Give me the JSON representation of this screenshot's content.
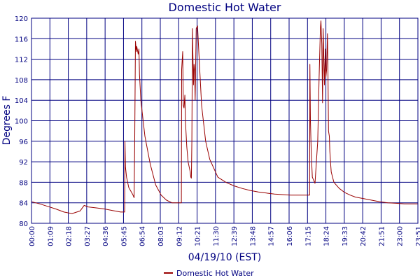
{
  "chart_data": {
    "type": "line",
    "title": "Domestic Hot Water",
    "xlabel": "04/19/10 (EST)",
    "ylabel": "Degrees F",
    "ylim": [
      80,
      120
    ],
    "yticks": [
      "80",
      "84",
      "88",
      "92",
      "96",
      "100",
      "104",
      "108",
      "112",
      "116",
      "120"
    ],
    "xticks": [
      "00:00",
      "01:09",
      "02:18",
      "03:27",
      "04:36",
      "05:45",
      "06:54",
      "08:03",
      "09:12",
      "10:21",
      "11:30",
      "12:39",
      "13:48",
      "14:57",
      "16:06",
      "17:15",
      "18:24",
      "19:33",
      "20:42",
      "21:51",
      "23:00",
      "23:51"
    ],
    "grid": true,
    "legend": "bottom-center",
    "colors": {
      "series": "#990000",
      "axis": "#000080",
      "grid": "#000080",
      "text": "#000080"
    },
    "series": [
      {
        "name": "Domestic Hot Water",
        "x_minutes": [
          0,
          30,
          60,
          90,
          120,
          150,
          180,
          195,
          210,
          240,
          270,
          300,
          330,
          345,
          346,
          348,
          352,
          360,
          375,
          380,
          382,
          385,
          388,
          390,
          395,
          398,
          400,
          405,
          420,
          440,
          460,
          480,
          500,
          520,
          540,
          555,
          556,
          560,
          562,
          565,
          568,
          570,
          575,
          580,
          588,
          590,
          592,
          594,
          596,
          598,
          600,
          602,
          604,
          606,
          610,
          615,
          620,
          630,
          645,
          660,
          690,
          720,
          750,
          780,
          810,
          840,
          870,
          900,
          930,
          960,
          990,
          1030,
          1031,
          1033,
          1036,
          1040,
          1050,
          1060,
          1065,
          1070,
          1072,
          1075,
          1078,
          1080,
          1085,
          1088,
          1090,
          1093,
          1096,
          1098,
          1100,
          1103,
          1105,
          1108,
          1110,
          1120,
          1140,
          1160,
          1180,
          1200,
          1230,
          1260,
          1290,
          1320,
          1350,
          1380,
          1410,
          1431
        ],
        "values": [
          84.2,
          83.8,
          83.3,
          82.8,
          82.2,
          81.9,
          82.4,
          83.5,
          83.2,
          83.0,
          82.8,
          82.5,
          82.2,
          82.2,
          96.0,
          91.0,
          89.0,
          87.0,
          85.6,
          85.0,
          95.0,
          115.5,
          113.5,
          114.5,
          113.0,
          114.0,
          109.0,
          104.0,
          97.0,
          91.5,
          87.5,
          85.5,
          84.5,
          84.0,
          84.0,
          84.0,
          110.0,
          113.5,
          103.0,
          102.5,
          105.0,
          100.0,
          95.0,
          92.0,
          90.0,
          89.0,
          88.8,
          96.0,
          118.0,
          112.0,
          107.0,
          111.0,
          110.0,
          104.0,
          118.0,
          118.5,
          113.0,
          103.0,
          96.0,
          92.5,
          89.0,
          88.0,
          87.3,
          86.8,
          86.4,
          86.1,
          85.9,
          85.7,
          85.6,
          85.5,
          85.5,
          85.5,
          111.0,
          100.0,
          94.0,
          89.0,
          87.8,
          96.0,
          108.0,
          118.0,
          119.5,
          115.0,
          103.5,
          118.0,
          107.0,
          114.0,
          108.5,
          110.0,
          117.0,
          110.0,
          98.0,
          97.0,
          94.0,
          91.5,
          90.0,
          88.0,
          86.8,
          86.0,
          85.5,
          85.1,
          84.8,
          84.5,
          84.2,
          84.0,
          83.9,
          83.8,
          83.8,
          83.8
        ]
      }
    ]
  }
}
